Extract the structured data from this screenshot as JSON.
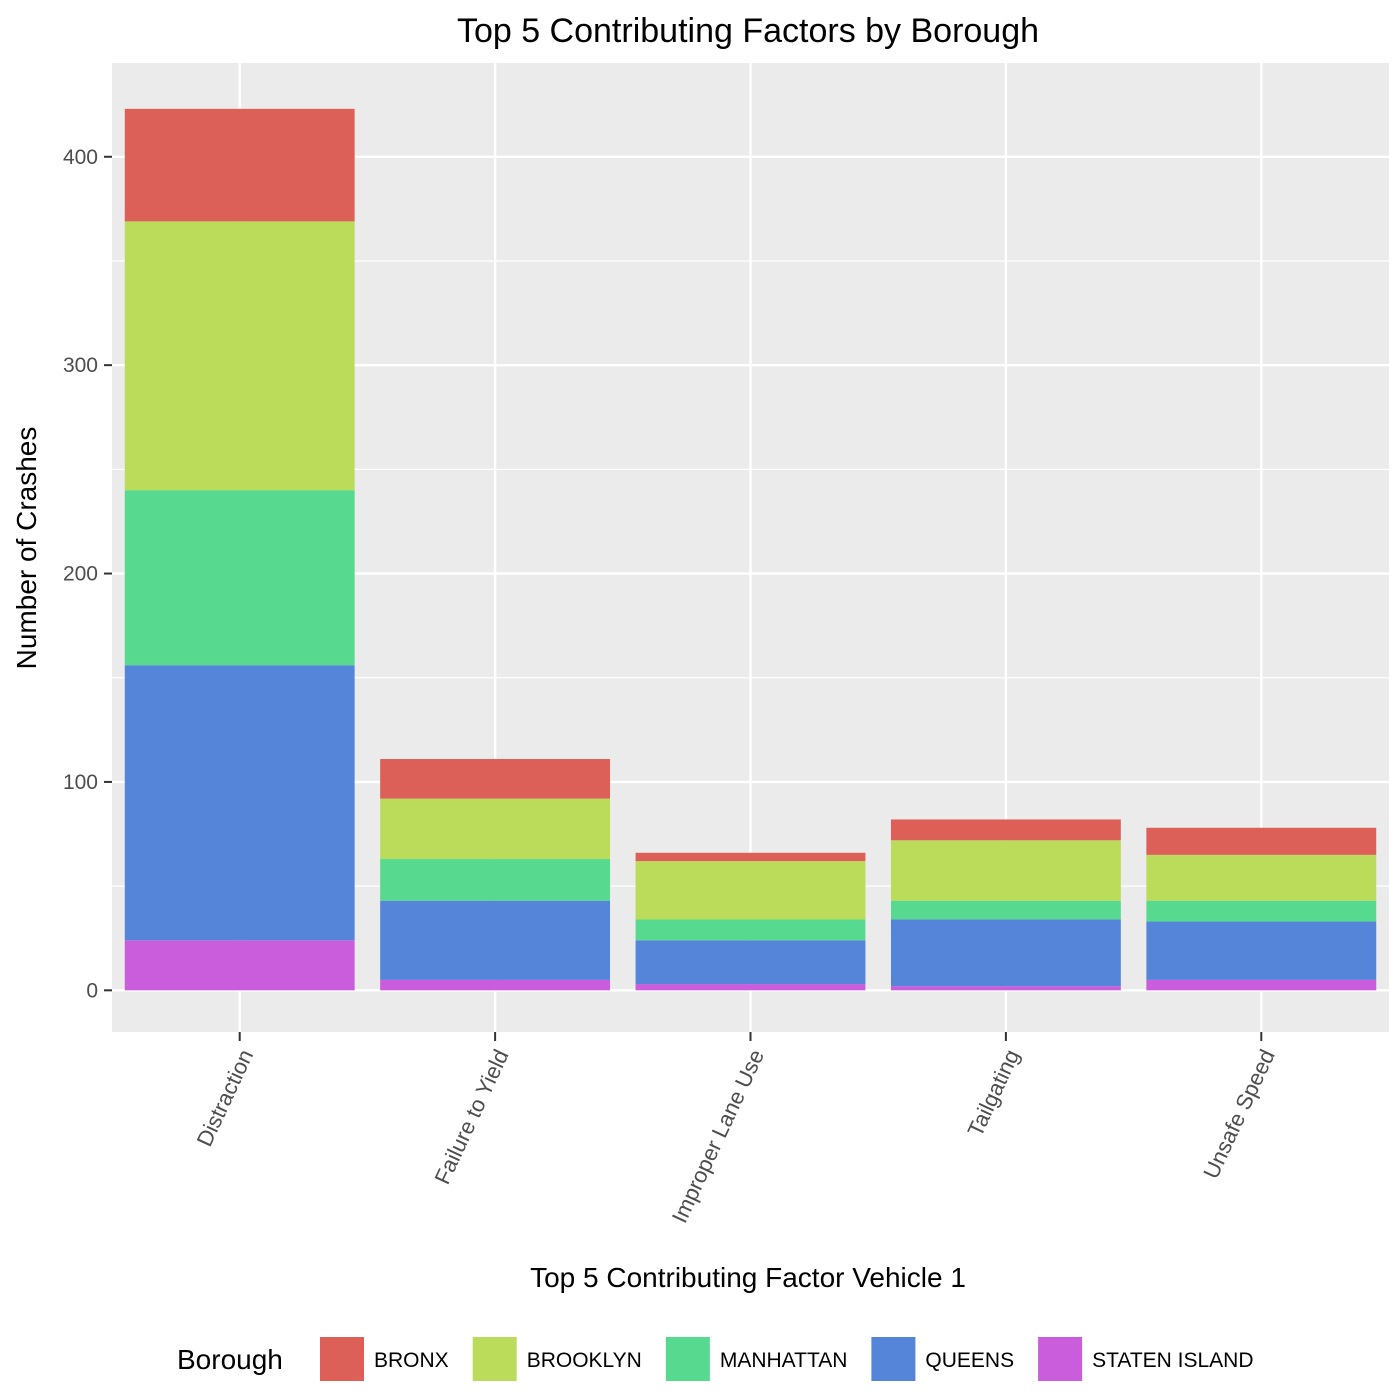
{
  "chart_data": {
    "type": "bar",
    "stacked": true,
    "title": "Top 5 Contributing Factors by Borough",
    "xlabel": "Top 5 Contributing Factor Vehicle 1",
    "ylabel": "Number of Crashes",
    "categories": [
      "Distraction",
      "Failure to Yield",
      "Improper Lane Use",
      "Tailgating",
      "Unsafe Speed"
    ],
    "ylim": [
      -20,
      445
    ],
    "yticks": [
      0,
      100,
      200,
      300,
      400
    ],
    "grid": true,
    "legend": {
      "title": "Borough",
      "position": "bottom"
    },
    "series": [
      {
        "name": "STATEN ISLAND",
        "color": "#C95DDB",
        "values": [
          24,
          5,
          3,
          2,
          5
        ]
      },
      {
        "name": "QUEENS",
        "color": "#5585D9",
        "values": [
          132,
          38,
          21,
          32,
          28
        ]
      },
      {
        "name": "MANHATTAN",
        "color": "#58D990",
        "values": [
          84,
          20,
          10,
          9,
          10
        ]
      },
      {
        "name": "BROOKLYN",
        "color": "#BBDB5A",
        "values": [
          129,
          29,
          28,
          29,
          22
        ]
      },
      {
        "name": "BRONX",
        "color": "#DD6058",
        "values": [
          54,
          19,
          4,
          10,
          13
        ]
      }
    ],
    "legend_order": [
      "BRONX",
      "BROOKLYN",
      "MANHATTAN",
      "QUEENS",
      "STATEN ISLAND"
    ]
  }
}
